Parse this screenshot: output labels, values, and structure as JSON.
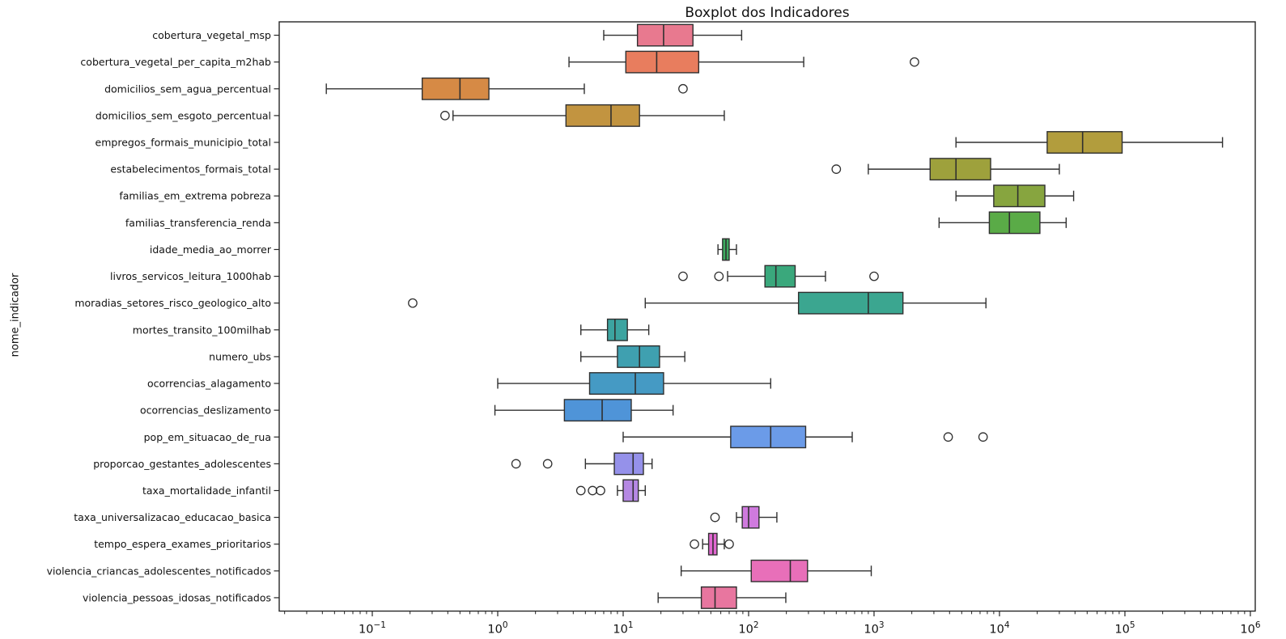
{
  "chart_data": {
    "type": "boxplot",
    "orientation": "horizontal",
    "title": "Boxplot dos Indicadores",
    "xlabel": "",
    "ylabel": "nome_indicador",
    "xscale": "log",
    "xlim_log": [
      -1.742,
      6.039
    ],
    "x_tick_exponents": [
      -1,
      0,
      1,
      2,
      3,
      4,
      5,
      6
    ],
    "grid": false,
    "background_color": "#ffffff",
    "edge_color": "#303030",
    "axis_color": "#262626",
    "rows": [
      {
        "name": "cobertura_vegetal_msp",
        "color": "#e8798f",
        "low": 7,
        "q1": 13,
        "median": 21,
        "q3": 36,
        "high": 88,
        "outliers": []
      },
      {
        "name": "cobertura_vegetal_per_capita_m2hab",
        "color": "#e87d5e",
        "low": 3.7,
        "q1": 10.5,
        "median": 18.5,
        "q3": 40,
        "high": 275,
        "outliers": [
          2100
        ]
      },
      {
        "name": "domicilios_sem_agua_percentual",
        "color": "#d68a45",
        "low": 0.043,
        "q1": 0.25,
        "median": 0.5,
        "q3": 0.85,
        "high": 4.9,
        "outliers": [
          30
        ]
      },
      {
        "name": "domicilios_sem_esgoto_percentual",
        "color": "#c29440",
        "low": 0.44,
        "q1": 3.5,
        "median": 8,
        "q3": 13.5,
        "high": 64,
        "outliers": [
          0.38
        ]
      },
      {
        "name": "empregos_formais_municipio_total",
        "color": "#b29d3d",
        "low": 4500,
        "q1": 24000,
        "median": 46000,
        "q3": 95000,
        "high": 600000,
        "outliers": []
      },
      {
        "name": "estabelecimentos_formais_total",
        "color": "#9ea13c",
        "low": 900,
        "q1": 2800,
        "median": 4500,
        "q3": 8500,
        "high": 30000,
        "outliers": [
          500
        ]
      },
      {
        "name": "familias_em_extrema pobreza",
        "color": "#87a53f",
        "low": 4500,
        "q1": 9000,
        "median": 14000,
        "q3": 23000,
        "high": 39000,
        "outliers": []
      },
      {
        "name": "familias_transferencia_renda",
        "color": "#5aab47",
        "low": 3300,
        "q1": 8300,
        "median": 12000,
        "q3": 21000,
        "high": 34000,
        "outliers": []
      },
      {
        "name": "idade_media_ao_morrer",
        "color": "#3dab60",
        "low": 57,
        "q1": 62,
        "median": 66,
        "q3": 70,
        "high": 80,
        "outliers": []
      },
      {
        "name": "livros_servicos_leitura_1000hab",
        "color": "#3aa87c",
        "low": 68,
        "q1": 135,
        "median": 165,
        "q3": 235,
        "high": 410,
        "outliers": [
          30,
          58,
          1000
        ]
      },
      {
        "name": "moradias_setores_risco_geologico_alto",
        "color": "#3ba690",
        "low": 15,
        "q1": 250,
        "median": 900,
        "q3": 1700,
        "high": 7800,
        "outliers": [
          0.21
        ]
      },
      {
        "name": "mortes_transito_100milhab",
        "color": "#3ca4a0",
        "low": 4.6,
        "q1": 7.5,
        "median": 8.6,
        "q3": 10.8,
        "high": 16,
        "outliers": []
      },
      {
        "name": "numero_ubs",
        "color": "#3fa0b0",
        "low": 4.6,
        "q1": 9,
        "median": 13.5,
        "q3": 19.5,
        "high": 31,
        "outliers": []
      },
      {
        "name": "ocorrencias_alagamento",
        "color": "#459ac4",
        "low": 1.0,
        "q1": 5.4,
        "median": 12.5,
        "q3": 21,
        "high": 150,
        "outliers": []
      },
      {
        "name": "ocorrencias_deslizamento",
        "color": "#4f94d8",
        "low": 0.95,
        "q1": 3.4,
        "median": 6.8,
        "q3": 11.6,
        "high": 25,
        "outliers": []
      },
      {
        "name": "pop_em_situacao_de_rua",
        "color": "#6b9be8",
        "low": 10,
        "q1": 72,
        "median": 150,
        "q3": 285,
        "high": 670,
        "outliers": [
          3900,
          7400
        ]
      },
      {
        "name": "proporcao_gestantes_adolescentes",
        "color": "#9591ea",
        "low": 5,
        "q1": 8.5,
        "median": 12,
        "q3": 14.5,
        "high": 17,
        "outliers": [
          1.4,
          2.5
        ]
      },
      {
        "name": "taxa_mortalidade_infantil",
        "color": "#b588e3",
        "low": 9,
        "q1": 10,
        "median": 12,
        "q3": 13.2,
        "high": 15,
        "outliers": [
          4.6,
          5.7,
          6.6
        ]
      },
      {
        "name": "taxa_universalizacao_educacao_basica",
        "color": "#cf7ade",
        "low": 80,
        "q1": 89,
        "median": 100,
        "q3": 121,
        "high": 168,
        "outliers": [
          54
        ]
      },
      {
        "name": "tempo_espera_exames_prioritarios",
        "color": "#e167d1",
        "low": 43,
        "q1": 48,
        "median": 52,
        "q3": 56,
        "high": 64,
        "outliers": [
          37,
          70
        ]
      },
      {
        "name": "violencia_criancas_adolescentes_notificados",
        "color": "#e86fb9",
        "low": 29,
        "q1": 105,
        "median": 215,
        "q3": 295,
        "high": 950,
        "outliers": []
      },
      {
        "name": "violencia_pessoas_idosas_notificados",
        "color": "#e8769f",
        "low": 19,
        "q1": 42,
        "median": 54,
        "q3": 80,
        "high": 198,
        "outliers": []
      }
    ]
  }
}
